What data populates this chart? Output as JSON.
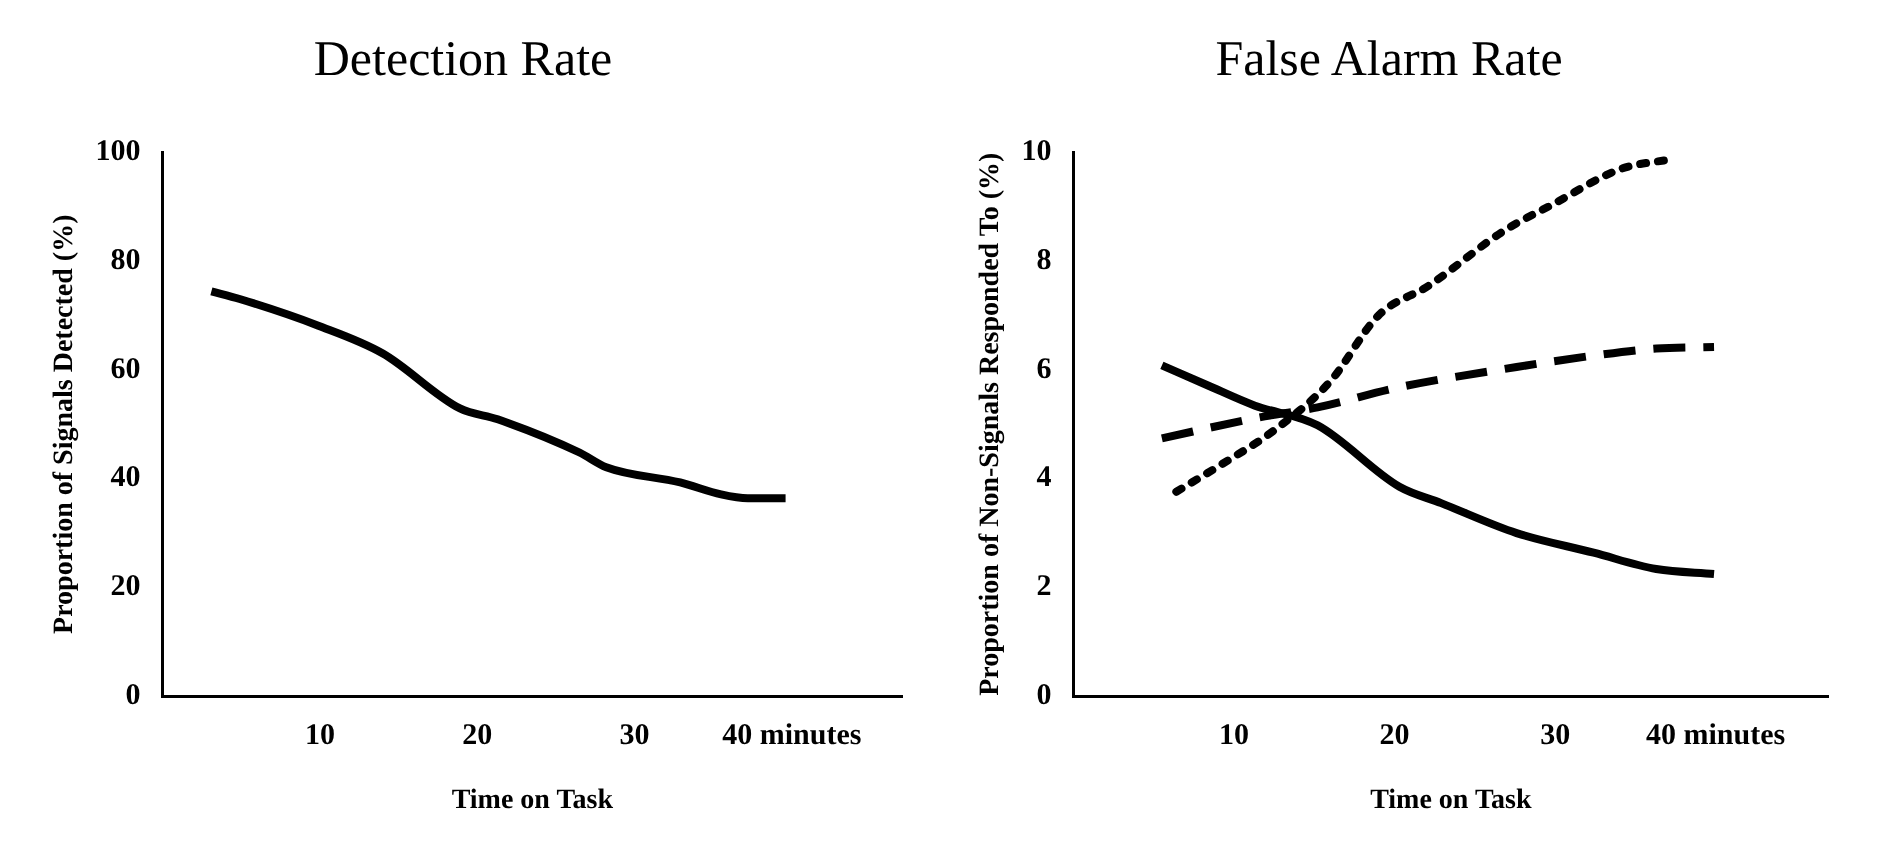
{
  "chart_data": [
    {
      "type": "line",
      "title": "Detection Rate",
      "xlabel": "Time on Task",
      "ylabel": "Proportion of Signals Detected (%)",
      "xlim": [
        0,
        47
      ],
      "xticks": [
        10,
        20,
        30,
        {
          "value": 40,
          "label": "40 minutes"
        }
      ],
      "ylim": [
        0,
        100
      ],
      "yticks": [
        0,
        20,
        40,
        60,
        80,
        100
      ],
      "series": [
        {
          "color": "#000000",
          "line_style": "solid",
          "x": [
            3.1,
            4.9,
            9.9,
            14.0,
            18.9,
            21.3,
            26.5,
            28.2,
            32.9,
            35.5,
            37.2,
            39.6
          ],
          "values": [
            74.4,
            73.0,
            68.1,
            63.0,
            52.9,
            50.9,
            44.8,
            42.1,
            39.3,
            37.1,
            36.4,
            36.4
          ]
        }
      ]
    },
    {
      "type": "line",
      "title": "False Alarm Rate",
      "xlabel": "Time on Task",
      "ylabel": "Proportion of Non-Signals Responded To (%)",
      "xlim": [
        0,
        47
      ],
      "xticks": [
        10,
        20,
        30,
        {
          "value": 40,
          "label": "40 minutes"
        }
      ],
      "ylim": [
        0,
        10
      ],
      "yticks": [
        0,
        2,
        4,
        6,
        8,
        10
      ],
      "series": [
        {
          "color": "#000000",
          "line_style": "solid",
          "x": [
            5.5,
            8.3,
            11.3,
            15.2,
            20.3,
            22.9,
            27.6,
            32.4,
            36.3,
            39.9
          ],
          "values": [
            6.08,
            5.72,
            5.34,
            4.98,
            3.85,
            3.55,
            3.0,
            2.64,
            2.34,
            2.25
          ]
        },
        {
          "color": "#000000",
          "line_style": "dashed",
          "x": [
            5.5,
            11.3,
            15.2,
            20.3,
            27.6,
            32.4,
            36.3,
            39.9
          ],
          "values": [
            4.74,
            5.11,
            5.31,
            5.68,
            6.05,
            6.26,
            6.39,
            6.42
          ]
        },
        {
          "color": "#000000",
          "line_style": "dotted",
          "x": [
            6.4,
            9.1,
            12.6,
            16.0,
            19.0,
            22.1,
            26.8,
            29.8,
            34.1,
            37.3
          ],
          "values": [
            3.76,
            4.24,
            4.91,
            5.79,
            7.0,
            7.54,
            8.55,
            9.03,
            9.69,
            9.87
          ]
        }
      ]
    }
  ]
}
